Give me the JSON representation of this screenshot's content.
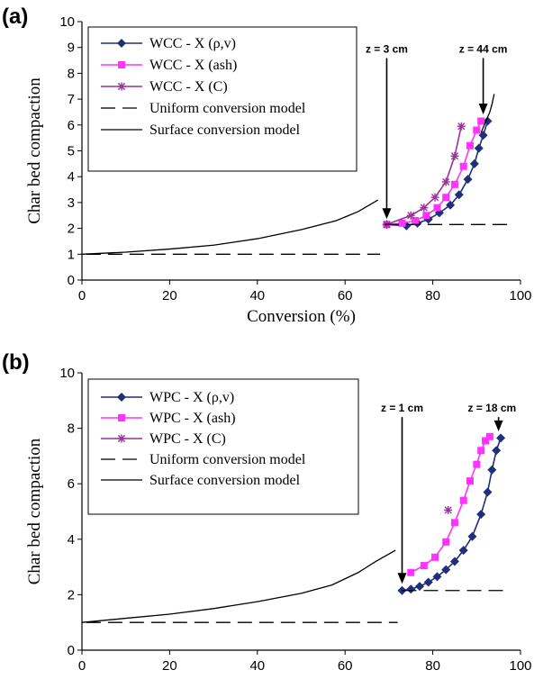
{
  "chart_data": [
    {
      "type": "line",
      "panel_label": "(a)",
      "xlabel": "Conversion (%)",
      "ylabel": "Char bed compaction",
      "xlim": [
        0,
        100
      ],
      "ylim": [
        0,
        10
      ],
      "xticks": [
        "0",
        "20",
        "40",
        "60",
        "80",
        "100"
      ],
      "yticks": [
        "0",
        "1",
        "2",
        "3",
        "4",
        "5",
        "6",
        "7",
        "8",
        "9",
        "10"
      ],
      "grid": false,
      "legend_position": "top-left",
      "series": [
        {
          "name": "WCC - X (ρ,v)",
          "color": "#1f2f7a",
          "marker": "diamond",
          "dash": "solid",
          "x": [
            69.5,
            74,
            76.5,
            79,
            81.5,
            84,
            86,
            88,
            89.5,
            90.5,
            91.5,
            92.5
          ],
          "y": [
            2.15,
            2.1,
            2.2,
            2.35,
            2.6,
            2.9,
            3.3,
            3.9,
            4.5,
            5.1,
            5.6,
            6.15
          ]
        },
        {
          "name": "WCC - X (ash)",
          "color": "#ff33ff",
          "marker": "square",
          "dash": "solid",
          "x": [
            69.5,
            73,
            76,
            78.5,
            81,
            83,
            85,
            87,
            88.5,
            90,
            91
          ],
          "y": [
            2.15,
            2.2,
            2.3,
            2.5,
            2.8,
            3.2,
            3.7,
            4.4,
            5.2,
            5.8,
            6.15
          ]
        },
        {
          "name": "WCC - X (C)",
          "color": "#993399",
          "marker": "star",
          "dash": "solid",
          "x": [
            69.5,
            75,
            78,
            80.5,
            83,
            85,
            86.5
          ],
          "y": [
            2.15,
            2.5,
            2.8,
            3.2,
            3.8,
            4.8,
            5.95
          ]
        },
        {
          "name": "Uniform conversion model",
          "color": "#000000",
          "marker": "none",
          "dash": "dashed",
          "x": [
            1,
            68
          ],
          "y": [
            1.0,
            1.0
          ],
          "x2": [
            69,
            97
          ],
          "y2": [
            2.15,
            2.15
          ]
        },
        {
          "name": "Surface conversion model",
          "color": "#000000",
          "marker": "none",
          "dash": "solid",
          "x": [
            0,
            10,
            20,
            30,
            40,
            50,
            58,
            63,
            67.5
          ],
          "y": [
            1.0,
            1.08,
            1.2,
            1.35,
            1.6,
            1.95,
            2.3,
            2.65,
            3.1
          ],
          "x2": [
            91,
            92,
            93,
            93.5,
            94
          ],
          "y2": [
            5.7,
            6.1,
            6.5,
            6.8,
            7.2
          ]
        }
      ],
      "annotations": [
        {
          "text": "z = 3 cm",
          "x": 69.5,
          "y": 2.15,
          "label_x": 69.5,
          "label_y": 8.8
        },
        {
          "text": "z = 44 cm",
          "x": 91.5,
          "y": 6.2,
          "label_x": 91.5,
          "label_y": 8.8
        }
      ]
    },
    {
      "type": "line",
      "panel_label": "(b)",
      "xlabel": "Conversion (%)",
      "ylabel": "Char bed compaction",
      "xlim": [
        0,
        100
      ],
      "ylim": [
        0,
        10
      ],
      "xticks": [
        "0",
        "20",
        "40",
        "60",
        "80",
        "100"
      ],
      "yticks": [
        "0",
        "2",
        "4",
        "6",
        "8",
        "10"
      ],
      "grid": false,
      "legend_position": "top-left",
      "series": [
        {
          "name": "WPC - X (ρ,v)",
          "color": "#1f2f7a",
          "marker": "diamond",
          "dash": "solid",
          "x": [
            73,
            75,
            77,
            79,
            81,
            83,
            85,
            87,
            89,
            91,
            92.5,
            93.5,
            94.5,
            95.5
          ],
          "y": [
            2.15,
            2.2,
            2.3,
            2.45,
            2.65,
            2.9,
            3.2,
            3.6,
            4.1,
            4.9,
            5.7,
            6.5,
            7.2,
            7.65
          ]
        },
        {
          "name": "WPC - X (ash)",
          "color": "#ff33ff",
          "marker": "square",
          "dash": "solid",
          "x": [
            75,
            78,
            80.5,
            83,
            85,
            87,
            88.5,
            90,
            91,
            92,
            93
          ],
          "y": [
            2.8,
            3.05,
            3.35,
            3.9,
            4.6,
            5.4,
            6.1,
            6.7,
            7.2,
            7.55,
            7.7
          ]
        },
        {
          "name": "WPC - X (C)",
          "color": "#993399",
          "marker": "star",
          "dash": "solid",
          "x": [
            83.5
          ],
          "y": [
            5.05
          ]
        },
        {
          "name": "Uniform conversion model",
          "color": "#000000",
          "marker": "none",
          "dash": "dashed",
          "x": [
            1,
            72
          ],
          "y": [
            1.0,
            1.0
          ],
          "x2": [
            73,
            97
          ],
          "y2": [
            2.15,
            2.15
          ]
        },
        {
          "name": "Surface conversion model",
          "color": "#000000",
          "marker": "none",
          "dash": "solid",
          "x": [
            0,
            10,
            20,
            30,
            40,
            50,
            57,
            63,
            67,
            71.5
          ],
          "y": [
            1.0,
            1.15,
            1.3,
            1.5,
            1.75,
            2.05,
            2.35,
            2.8,
            3.2,
            3.6
          ]
        }
      ],
      "annotations": [
        {
          "text": "z = 1 cm",
          "x": 73,
          "y": 2.2,
          "label_x": 73,
          "label_y": 8.6
        },
        {
          "text": "z = 18 cm",
          "x": 95,
          "y": 7.7,
          "label_x": 93.5,
          "label_y": 8.6
        }
      ]
    }
  ]
}
